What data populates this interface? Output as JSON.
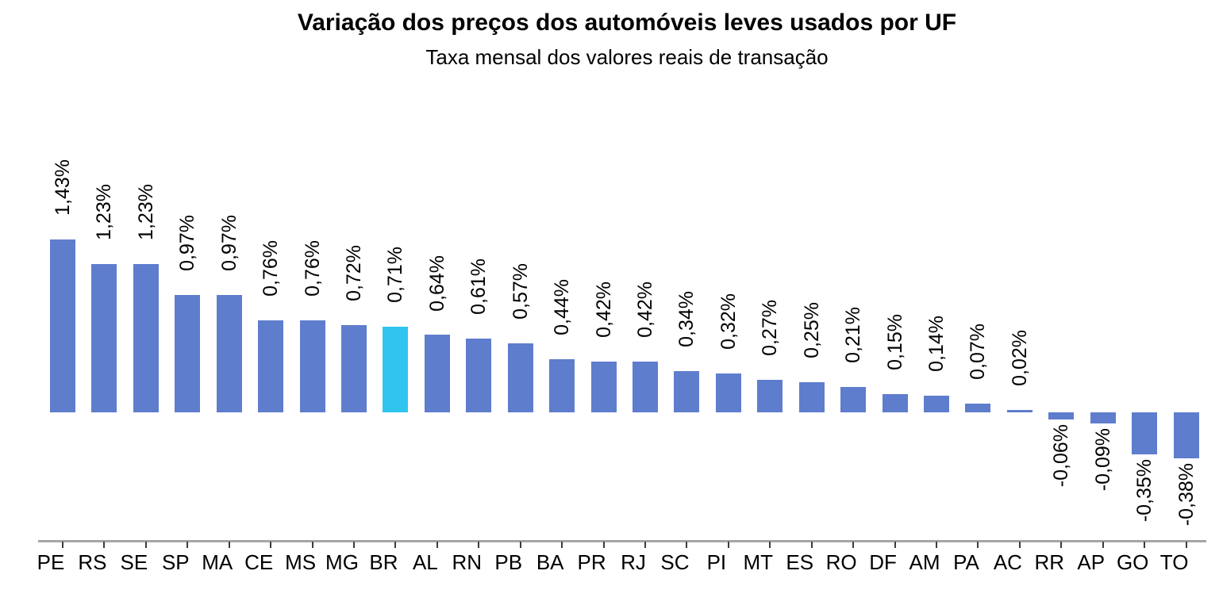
{
  "header": {
    "title": "Variação dos preços dos automóveis leves usados por UF",
    "subtitle": "Taxa mensal dos valores reais de transação"
  },
  "chart_data": {
    "type": "bar",
    "title": "Variação dos preços dos automóveis leves usados por UF",
    "subtitle": "Taxa mensal dos valores reais de transação",
    "categories": [
      "PE",
      "RS",
      "SE",
      "SP",
      "MA",
      "CE",
      "MS",
      "MG",
      "BR",
      "AL",
      "RN",
      "PB",
      "BA",
      "PR",
      "RJ",
      "SC",
      "PI",
      "MT",
      "ES",
      "RO",
      "DF",
      "AM",
      "PA",
      "AC",
      "RR",
      "AP",
      "GO",
      "TO"
    ],
    "values": [
      1.43,
      1.23,
      1.23,
      0.97,
      0.97,
      0.76,
      0.76,
      0.72,
      0.71,
      0.64,
      0.61,
      0.57,
      0.44,
      0.42,
      0.42,
      0.34,
      0.32,
      0.27,
      0.25,
      0.21,
      0.15,
      0.14,
      0.07,
      0.02,
      -0.06,
      -0.09,
      -0.35,
      -0.38
    ],
    "value_labels": [
      "1,43%",
      "1,23%",
      "1,23%",
      "0,97%",
      "0,97%",
      "0,76%",
      "0,76%",
      "0,72%",
      "0,71%",
      "0,64%",
      "0,61%",
      "0,57%",
      "0,44%",
      "0,42%",
      "0,42%",
      "0,34%",
      "0,32%",
      "0,27%",
      "0,25%",
      "0,21%",
      "0,15%",
      "0,14%",
      "0,07%",
      "0,02%",
      "-0,06%",
      "-0,09%",
      "-0,35%",
      "-0,38%"
    ],
    "highlight_category": "BR",
    "bar_color": "#5f7dcd",
    "highlight_color": "#30c5ef",
    "axis_line_color": "#a6a6a6",
    "tick_color": "#3c3c3c",
    "text_color": "#000000",
    "xlabel": "",
    "ylabel": "",
    "ylim": [
      -0.38,
      1.43
    ],
    "grid": false,
    "legend": false,
    "orientation": "vertical"
  }
}
